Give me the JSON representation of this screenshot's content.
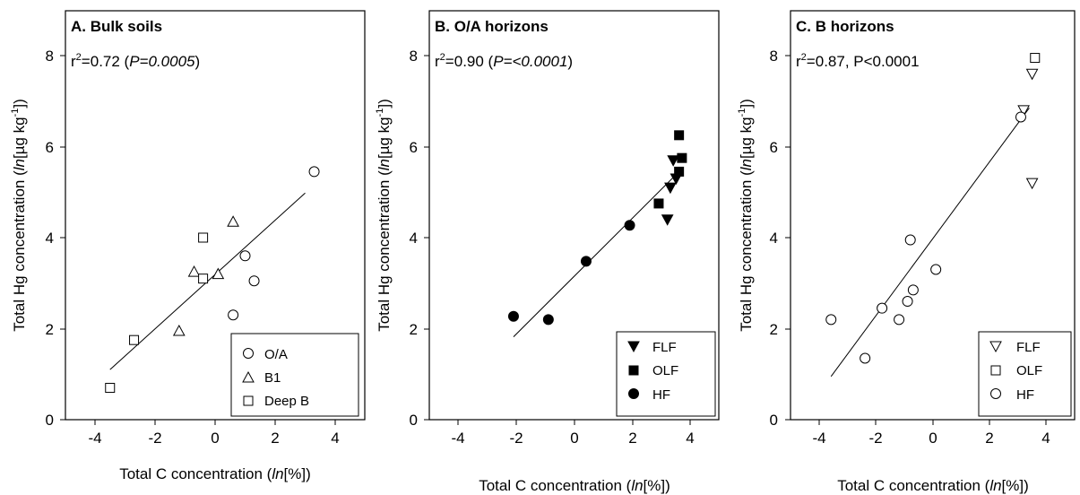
{
  "chart_data": [
    {
      "type": "scatter",
      "panel_title": "A. Bulk soils",
      "stat_r2": "0.72",
      "stat_p": "P=0.0005",
      "xlabel": "Total C concentration (ln[%])",
      "ylabel": "Total Hg concentration (ln[µg kg-1])",
      "xlim": [
        -5,
        5
      ],
      "ylim": [
        0,
        9
      ],
      "xticks": [
        "-4",
        "-2",
        "0",
        "2",
        "4"
      ],
      "yticks": [
        "0",
        "2",
        "4",
        "6",
        "8"
      ],
      "grid": false,
      "legend_position": "bottom-right",
      "series": [
        {
          "name": "O/A",
          "marker": "circle-open",
          "points": [
            [
              3.3,
              5.45
            ],
            [
              1.0,
              3.6
            ],
            [
              1.3,
              3.05
            ],
            [
              0.6,
              2.3
            ]
          ]
        },
        {
          "name": "B1",
          "marker": "triangle-open",
          "points": [
            [
              0.6,
              4.35
            ],
            [
              -0.7,
              3.25
            ],
            [
              0.1,
              3.2
            ],
            [
              -1.2,
              1.95
            ]
          ]
        },
        {
          "name": "Deep B",
          "marker": "square-open",
          "points": [
            [
              -0.4,
              4.0
            ],
            [
              -0.4,
              3.1
            ],
            [
              -2.7,
              1.75
            ],
            [
              -3.5,
              0.7
            ]
          ]
        }
      ],
      "fit_line": [
        [
          -3.5,
          1.1
        ],
        [
          3.0,
          4.98
        ]
      ]
    },
    {
      "type": "scatter",
      "panel_title": "B. O/A horizons",
      "stat_r2": "0.90",
      "stat_p": "P=<0.0001",
      "xlabel": "Total C concentration (ln[%])",
      "ylabel": "Total Hg concentration (ln[µg kg-1])",
      "xlim": [
        -5,
        5
      ],
      "ylim": [
        0,
        9
      ],
      "xticks": [
        "-4",
        "-2",
        "0",
        "2",
        "4"
      ],
      "yticks": [
        "0",
        "2",
        "4",
        "6",
        "8"
      ],
      "grid": false,
      "legend_position": "bottom-right",
      "series": [
        {
          "name": "FLF",
          "marker": "triangle-down-filled",
          "points": [
            [
              3.4,
              5.7
            ],
            [
              3.3,
              5.1
            ],
            [
              3.2,
              4.4
            ],
            [
              3.5,
              5.3
            ]
          ]
        },
        {
          "name": "OLF",
          "marker": "square-filled",
          "points": [
            [
              3.6,
              6.25
            ],
            [
              3.7,
              5.75
            ],
            [
              3.6,
              5.45
            ],
            [
              2.9,
              4.75
            ]
          ]
        },
        {
          "name": "HF",
          "marker": "circle-filled",
          "points": [
            [
              1.9,
              4.27
            ],
            [
              0.4,
              3.48
            ],
            [
              -0.9,
              2.2
            ],
            [
              -2.1,
              2.27
            ]
          ]
        }
      ],
      "fit_line": [
        [
          -2.1,
          1.82
        ],
        [
          3.6,
          5.45
        ]
      ]
    },
    {
      "type": "scatter",
      "panel_title": "C. B horizons",
      "stat_r2": "0.87",
      "stat_p": "P<0.0001",
      "xlabel": "Total C concentration (ln[%])",
      "ylabel": "Total Hg concentration (ln[µg kg-1])",
      "xlim": [
        -5,
        5
      ],
      "ylim": [
        0,
        9
      ],
      "xticks": [
        "-4",
        "-2",
        "0",
        "2",
        "4"
      ],
      "yticks": [
        "0",
        "2",
        "4",
        "6",
        "8"
      ],
      "grid": false,
      "legend_position": "bottom-right",
      "series": [
        {
          "name": "FLF",
          "marker": "triangle-down-open",
          "points": [
            [
              3.5,
              7.6
            ],
            [
              3.2,
              6.8
            ],
            [
              3.5,
              5.2
            ]
          ]
        },
        {
          "name": "OLF",
          "marker": "square-open",
          "points": [
            [
              3.6,
              7.95
            ]
          ]
        },
        {
          "name": "HF",
          "marker": "circle-open",
          "points": [
            [
              3.1,
              6.65
            ],
            [
              -0.8,
              3.95
            ],
            [
              0.1,
              3.3
            ],
            [
              -0.7,
              2.85
            ],
            [
              -0.9,
              2.6
            ],
            [
              -1.8,
              2.45
            ],
            [
              -1.2,
              2.2
            ],
            [
              -3.6,
              2.2
            ],
            [
              -2.4,
              1.35
            ]
          ]
        }
      ],
      "fit_line": [
        [
          -3.6,
          0.95
        ],
        [
          3.4,
          6.85
        ]
      ]
    }
  ]
}
